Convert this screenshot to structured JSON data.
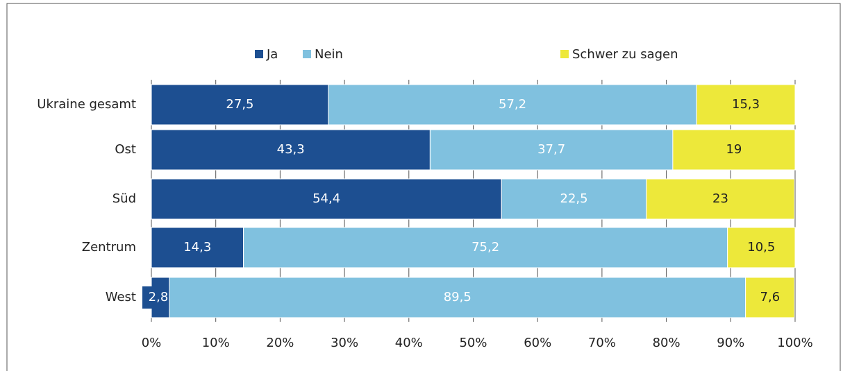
{
  "chart_data": {
    "type": "stacked-barh",
    "categories": [
      "Ukraine gesamt",
      "Ost",
      "Süd",
      "Zentrum",
      "West"
    ],
    "series": [
      {
        "name": "Ja",
        "color": "#1d4f91",
        "values": [
          27.5,
          43.3,
          54.4,
          14.3,
          2.8
        ],
        "value_labels": [
          "27,5",
          "43,3",
          "54,4",
          "14,3",
          "2,8"
        ]
      },
      {
        "name": "Nein",
        "color": "#80c1df",
        "values": [
          57.2,
          37.7,
          22.5,
          75.2,
          89.5
        ],
        "value_labels": [
          "57,2",
          "37,7",
          "22,5",
          "75,2",
          "89,5"
        ]
      },
      {
        "name": "Schwer zu sagen",
        "color": "#ede83a",
        "values": [
          15.3,
          19,
          23,
          10.5,
          7.6
        ],
        "value_labels": [
          "15,3",
          "19",
          "23",
          "10,5",
          "7,6"
        ]
      }
    ],
    "xlim": [
      0,
      100
    ],
    "xticks": [
      {
        "value": 0,
        "label": "0%"
      },
      {
        "value": 10,
        "label": "10%"
      },
      {
        "value": 20,
        "label": "20%"
      },
      {
        "value": 30,
        "label": "30%"
      },
      {
        "value": 40,
        "label": "40%"
      },
      {
        "value": 50,
        "label": "50%"
      },
      {
        "value": 60,
        "label": "60%"
      },
      {
        "value": 70,
        "label": "70%"
      },
      {
        "value": 80,
        "label": "80%"
      },
      {
        "value": 90,
        "label": "90%"
      },
      {
        "value": 100,
        "label": "100%"
      }
    ],
    "grid": true
  }
}
